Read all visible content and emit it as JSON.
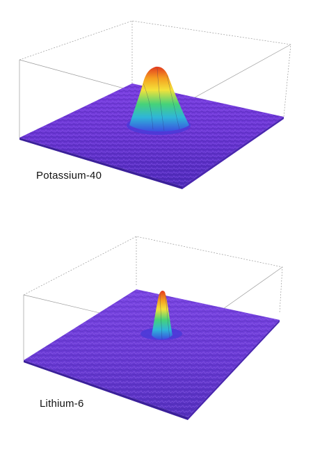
{
  "labels": {
    "top": "Potassium-40",
    "bottom": "Lithium-6"
  },
  "colors": {
    "background": "#ffffff",
    "surface_low": "#5a2ec8",
    "surface_peak_base": "#3a4fe0",
    "surface_peak_mid": "#3fd07a",
    "surface_peak_yellow": "#f3e23a",
    "surface_peak_top": "#e23a1f",
    "box_lines": "#9a9a9a"
  }
}
